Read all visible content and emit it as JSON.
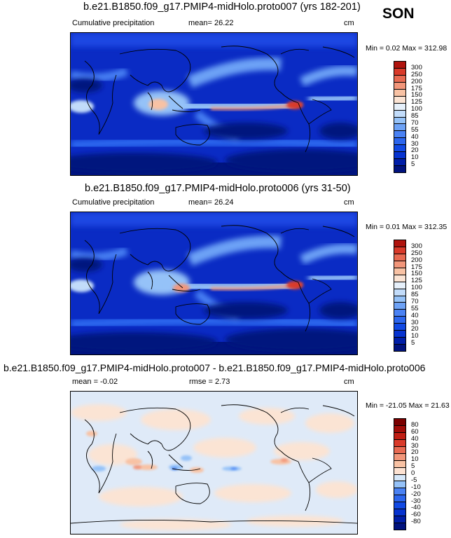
{
  "season": "SON",
  "chart_data": [
    {
      "type": "heatmap",
      "title": "b.e21.B1850.f09_g17.PMIP4-midHolo.proto007 (yrs 182-201)",
      "left_label": "Cumulative precipitation",
      "mean_text": "mean=  26.22",
      "units": "cm",
      "minmax_text": "Min =  0.02 Max = 312.98",
      "levels": [
        "5",
        "10",
        "20",
        "30",
        "40",
        "55",
        "70",
        "85",
        "100",
        "125",
        "150",
        "175",
        "200",
        "250",
        "300"
      ],
      "palette": [
        "#00127e",
        "#001ea8",
        "#0633d0",
        "#1149e4",
        "#2c66ee",
        "#4a82f4",
        "#6da2f6",
        "#95c2f8",
        "#c2dcfa",
        "#e6f0fa",
        "#fbe4d4",
        "#f8c2a4",
        "#f2967a",
        "#e86a52",
        "#d93a2a",
        "#b0140e"
      ]
    },
    {
      "type": "heatmap",
      "title": "b.e21.B1850.f09_g17.PMIP4-midHolo.proto006 (yrs 31-50)",
      "left_label": "Cumulative precipitation",
      "mean_text": "mean=  26.24",
      "units": "cm",
      "minmax_text": "Min =  0.01 Max = 312.35",
      "levels": [
        "5",
        "10",
        "20",
        "30",
        "40",
        "55",
        "70",
        "85",
        "100",
        "125",
        "150",
        "175",
        "200",
        "250",
        "300"
      ],
      "palette": [
        "#00127e",
        "#001ea8",
        "#0633d0",
        "#1149e4",
        "#2c66ee",
        "#4a82f4",
        "#6da2f6",
        "#95c2f8",
        "#c2dcfa",
        "#e6f0fa",
        "#fbe4d4",
        "#f8c2a4",
        "#f2967a",
        "#e86a52",
        "#d93a2a",
        "#b0140e"
      ]
    },
    {
      "type": "heatmap",
      "title": "b.e21.B1850.f09_g17.PMIP4-midHolo.proto007 - b.e21.B1850.f09_g17.PMIP4-midHolo.proto006",
      "left_label": "mean =  -0.02",
      "mean_text": "rmse =   2.73",
      "units": "cm",
      "minmax_text": "Min = -21.05 Max =  21.63",
      "levels": [
        "-80",
        "-60",
        "-40",
        "-30",
        "-20",
        "-10",
        "-5",
        "0",
        "5",
        "10",
        "20",
        "30",
        "40",
        "60",
        "80"
      ],
      "palette": [
        "#00127e",
        "#001ea8",
        "#0633d0",
        "#1149e4",
        "#2c66ee",
        "#4a82f4",
        "#95c2f8",
        "#d6e8fa",
        "#fce2d2",
        "#f8c2a4",
        "#f2967a",
        "#e86a52",
        "#d93a2a",
        "#c01e14",
        "#a00c08",
        "#7a0000"
      ]
    }
  ]
}
